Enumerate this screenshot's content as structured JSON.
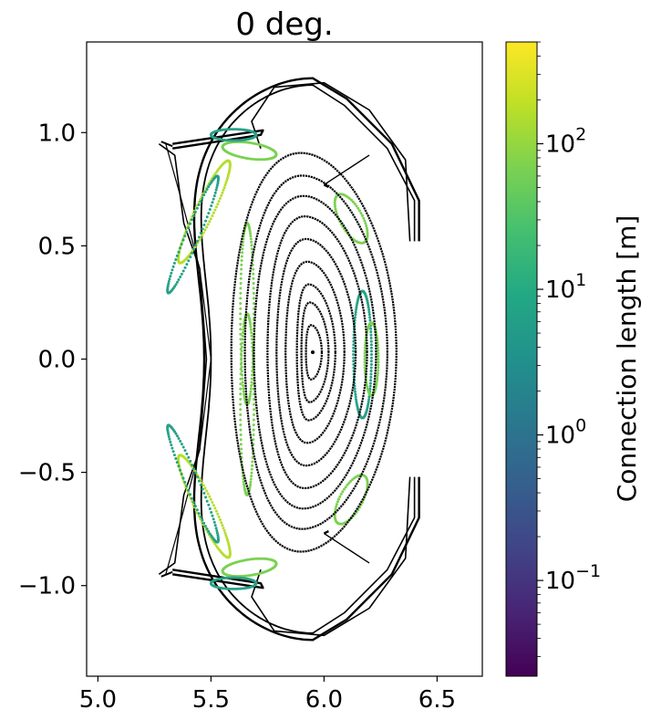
{
  "chart_data": {
    "type": "scatter",
    "title": "0 deg.",
    "xlabel": "",
    "ylabel": "",
    "xlim": [
      4.95,
      6.7
    ],
    "ylim": [
      -1.4,
      1.4
    ],
    "x_ticks": [
      5.0,
      5.5,
      6.0,
      6.5
    ],
    "x_tick_labels": [
      "5.0",
      "5.5",
      "6.0",
      "6.5"
    ],
    "y_ticks": [
      1.0,
      0.5,
      0.0,
      -0.5,
      -1.0
    ],
    "y_tick_labels": [
      "1.0",
      "0.5",
      "0.0",
      "−0.5",
      "−1.0"
    ],
    "grid": false,
    "magnetic_axis": [
      5.95,
      0.03
    ],
    "flux_surfaces": [
      {
        "w_out": 0.04,
        "w_in": 0.03,
        "h": 0.12
      },
      {
        "w_out": 0.07,
        "w_in": 0.05,
        "h": 0.22
      },
      {
        "w_out": 0.1,
        "w_in": 0.07,
        "h": 0.3
      },
      {
        "w_out": 0.14,
        "w_in": 0.12,
        "h": 0.4
      },
      {
        "w_out": 0.19,
        "w_in": 0.16,
        "h": 0.5
      },
      {
        "w_out": 0.24,
        "w_in": 0.2,
        "h": 0.6
      },
      {
        "w_out": 0.28,
        "w_in": 0.26,
        "h": 0.69
      },
      {
        "w_out": 0.33,
        "w_in": 0.3,
        "h": 0.78
      },
      {
        "w_out": 0.37,
        "w_in": 0.36,
        "h": 0.88
      }
    ],
    "colorbar": {
      "label": "Connection length [m]",
      "scale": "log",
      "colormap": "viridis",
      "range": [
        0.022,
        500
      ],
      "ticks": [
        {
          "base": "10",
          "exp": "−1",
          "value": 0.1
        },
        {
          "base": "10",
          "exp": "0",
          "value": 1
        },
        {
          "base": "10",
          "exp": "1",
          "value": 10
        },
        {
          "base": "10",
          "exp": "2",
          "value": 100
        }
      ]
    },
    "colors": {
      "surface": "#000000",
      "wall": "#000000",
      "teal": "#26a187",
      "green": "#7ad151",
      "yellow_green": "#b5de2b"
    }
  }
}
